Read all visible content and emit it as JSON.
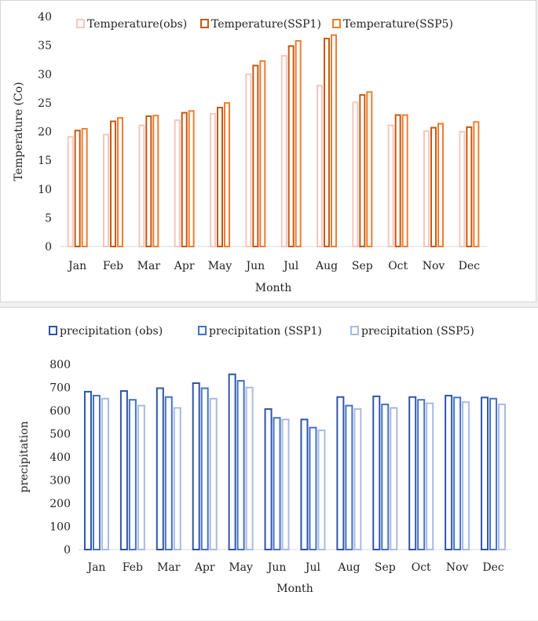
{
  "chart_data": [
    {
      "type": "bar",
      "title": "",
      "xlabel": "Month",
      "ylabel": "Temperature (Co)",
      "ylim": [
        0,
        40
      ],
      "yticks": [
        0,
        5,
        10,
        15,
        20,
        25,
        30,
        35,
        40
      ],
      "legend_position": "top-right",
      "categories": [
        "Jan",
        "Feb",
        "Mar",
        "Apr",
        "May",
        "Jun",
        "Jul",
        "Aug",
        "Sep",
        "Oct",
        "Nov",
        "Dec"
      ],
      "series": [
        {
          "name": "Temperature(obs)",
          "color": "#f4c7bd",
          "values": [
            19.2,
            19.6,
            21.2,
            22.1,
            23.2,
            30.1,
            33.3,
            28.1,
            25.2,
            21.2,
            20.2,
            20.1
          ]
        },
        {
          "name": "Temperature(SSP1)",
          "color": "#c55a11",
          "values": [
            20.3,
            21.9,
            22.8,
            23.4,
            24.3,
            31.6,
            35.0,
            36.3,
            26.5,
            23.0,
            20.8,
            20.9
          ]
        },
        {
          "name": "Temperature(SSP5)",
          "color": "#ed7d31",
          "values": [
            20.6,
            22.5,
            22.9,
            23.7,
            25.1,
            32.4,
            35.9,
            36.9,
            27.0,
            23.0,
            21.5,
            21.8
          ]
        }
      ]
    },
    {
      "type": "bar",
      "title": "",
      "xlabel": "Month",
      "ylabel": "precipitation",
      "ylim": [
        0,
        800
      ],
      "yticks": [
        0,
        100,
        200,
        300,
        400,
        500,
        600,
        700,
        800
      ],
      "legend_position": "top",
      "categories": [
        "Jan",
        "Feb",
        "Mar",
        "Apr",
        "May",
        "Jun",
        "Jul",
        "Aug",
        "Sep",
        "Oct",
        "Nov",
        "Dec"
      ],
      "series": [
        {
          "name": "precipitation (obs)",
          "color": "#2f54a8",
          "values": [
            685,
            688,
            700,
            722,
            760,
            610,
            565,
            662,
            665,
            662,
            668,
            660
          ]
        },
        {
          "name": "precipitation (SSP1)",
          "color": "#4472c4",
          "values": [
            668,
            650,
            662,
            700,
            732,
            572,
            530,
            625,
            630,
            650,
            660,
            655
          ]
        },
        {
          "name": "precipitation (SSP5)",
          "color": "#a9b9e3",
          "values": [
            655,
            625,
            615,
            655,
            703,
            565,
            518,
            610,
            615,
            635,
            640,
            630
          ]
        }
      ]
    }
  ]
}
